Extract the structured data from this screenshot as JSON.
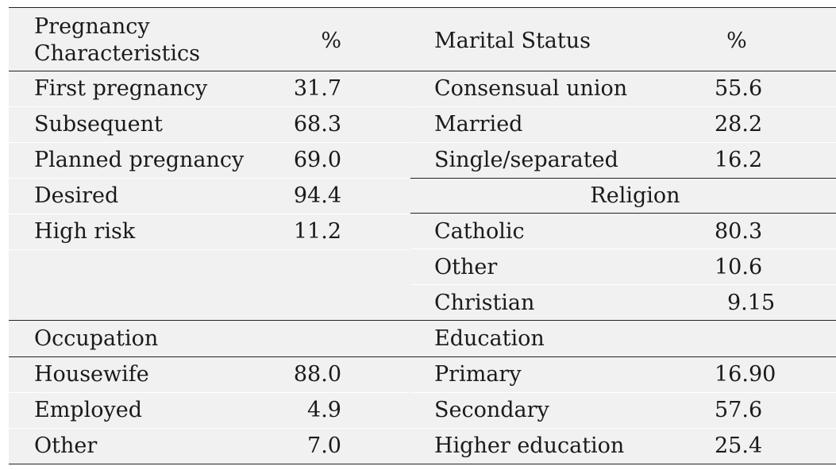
{
  "headers": {
    "pregnancy_line1": "Pregnancy",
    "pregnancy_line2": "Characteristics",
    "pct_left": "%",
    "marital": "Marital Status",
    "pct_right": "%"
  },
  "pregnancy": [
    {
      "label": "First pregnancy",
      "value": "31.7"
    },
    {
      "label": "Subsequent",
      "value": "68.3"
    },
    {
      "label": "Planned pregnancy",
      "value": "69.0"
    },
    {
      "label": "Desired",
      "value": "94.4"
    },
    {
      "label": "High risk",
      "value": "11.2"
    }
  ],
  "marital_status": [
    {
      "label": "Consensual union",
      "value": "55.6"
    },
    {
      "label": "Married",
      "value": "28.2"
    },
    {
      "label": "Single/separated",
      "value": "16.2"
    }
  ],
  "religion": {
    "title": "Religion",
    "rows": [
      {
        "label": "Catholic",
        "value": "80.3"
      },
      {
        "label": "Other",
        "value": "10.6"
      },
      {
        "label": "Christian",
        "value": "9.15"
      }
    ]
  },
  "occupation": {
    "title": "Occupation",
    "rows": [
      {
        "label": "Housewife",
        "value": "88.0"
      },
      {
        "label": "Employed",
        "value": "4.9"
      },
      {
        "label": "Other",
        "value": "7.0"
      }
    ]
  },
  "education": {
    "title": "Education",
    "rows": [
      {
        "label": "Primary",
        "value": "16.90"
      },
      {
        "label": "Secondary",
        "value": "57.6"
      },
      {
        "label": "Higher education",
        "value": "25.4"
      }
    ]
  }
}
